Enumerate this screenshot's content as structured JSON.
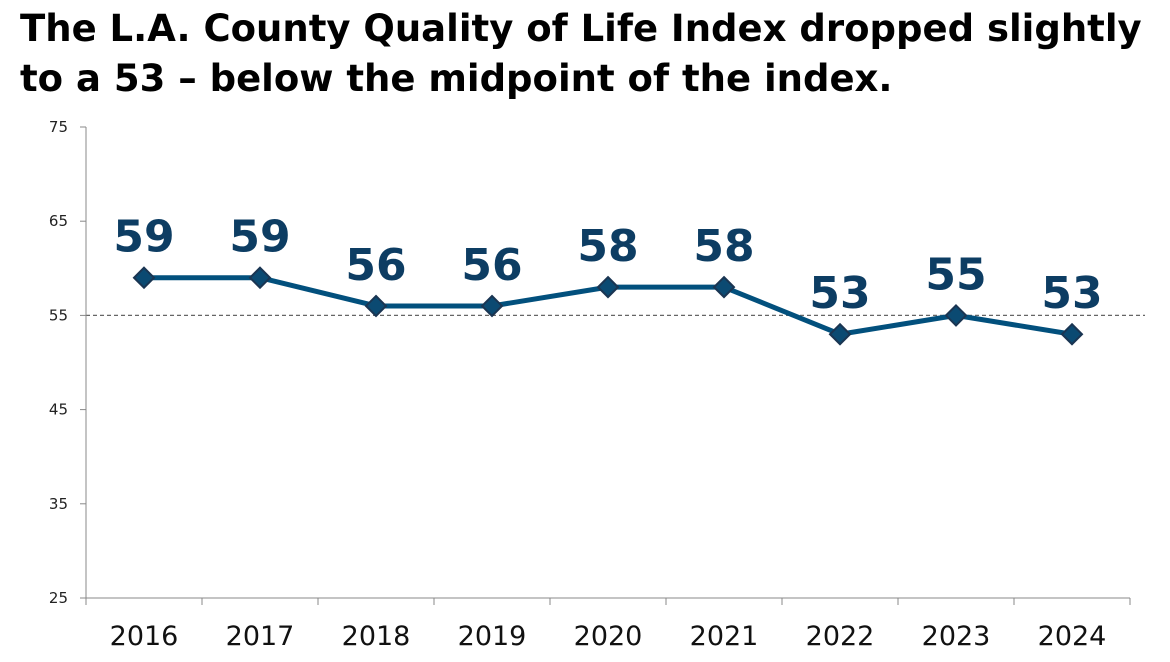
{
  "title": "The L.A. County Quality of Life Index dropped slightly to a 53 – below the midpoint of the index.",
  "chart_data": {
    "type": "line",
    "categories": [
      "2016",
      "2017",
      "2018",
      "2019",
      "2020",
      "2021",
      "2022",
      "2023",
      "2024"
    ],
    "values": [
      59,
      59,
      56,
      56,
      58,
      58,
      53,
      55,
      53
    ],
    "yticks": [
      75,
      65,
      55,
      45,
      35,
      25
    ],
    "ylim": [
      25,
      75
    ],
    "reference_line": 55,
    "grid": false,
    "xlabel": "",
    "ylabel": "",
    "colors": {
      "line": "#02507d",
      "marker": "#0b4a72",
      "label": "#0d3d63",
      "reference": "#666666"
    }
  }
}
